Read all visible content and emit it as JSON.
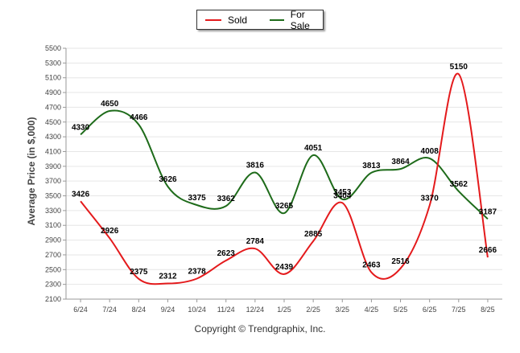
{
  "legend": {
    "items": [
      {
        "name": "Sold",
        "color": "#e41a1c"
      },
      {
        "name": "For Sale",
        "color": "#1e6b1a"
      }
    ]
  },
  "copyright": "Copyright © Trendgraphix, Inc.",
  "chart_data": {
    "type": "line",
    "title": "",
    "xlabel": "",
    "ylabel": "Average Price (in $,000)",
    "categories": [
      "6/24",
      "7/24",
      "8/24",
      "9/24",
      "10/24",
      "11/24",
      "12/24",
      "1/25",
      "2/25",
      "3/25",
      "4/25",
      "5/25",
      "6/25",
      "7/25",
      "8/25"
    ],
    "yticks": [
      2100,
      2300,
      2500,
      2700,
      2900,
      3100,
      3300,
      3500,
      3700,
      3900,
      4100,
      4300,
      4500,
      4700,
      4900,
      5100,
      5300,
      5500
    ],
    "ylim": [
      2100,
      5500
    ],
    "grid": true,
    "legend_position": "top-center",
    "series": [
      {
        "name": "Sold",
        "color": "#e41a1c",
        "values": [
          3426,
          2926,
          2375,
          2312,
          2378,
          2623,
          2784,
          2439,
          2885,
          3404,
          2463,
          2516,
          3370,
          5150,
          2666
        ]
      },
      {
        "name": "For Sale",
        "color": "#1e6b1a",
        "values": [
          4330,
          4650,
          4466,
          3626,
          3375,
          3362,
          3816,
          3265,
          4051,
          3453,
          3813,
          3864,
          4008,
          3562,
          3187
        ]
      }
    ]
  }
}
